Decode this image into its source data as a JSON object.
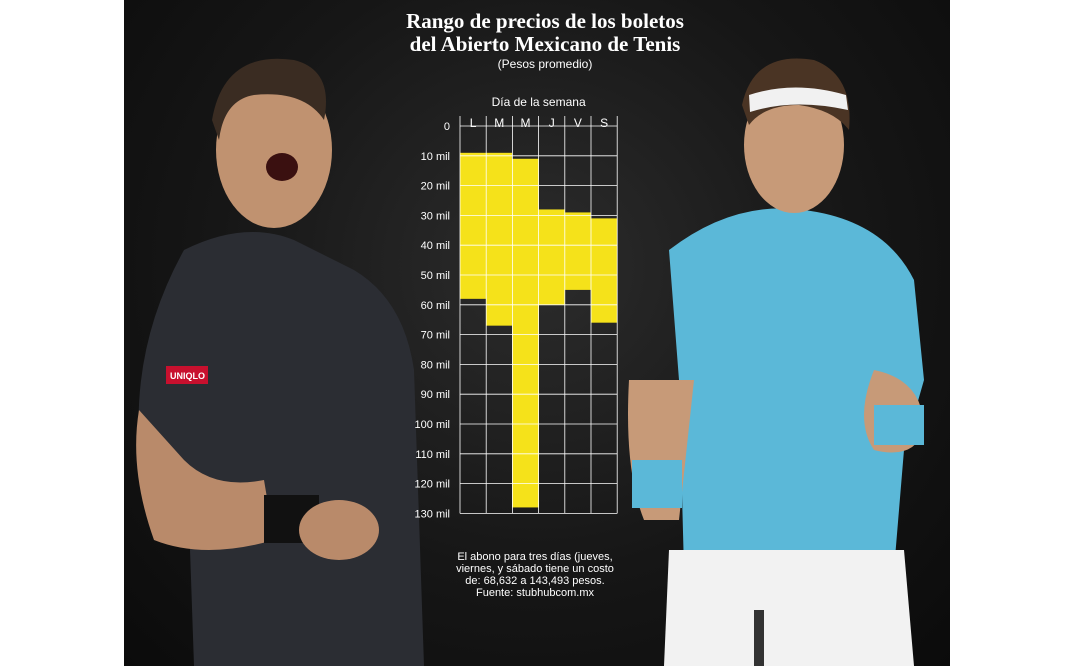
{
  "title_line1": "Rango de precios de los boletos",
  "title_line2": "del Abierto Mexicano de Tenis",
  "subtitle": "(Pesos promedio)",
  "note": {
    "line1": "El abono para tres días (jueves,",
    "line2": "viernes, y sábado tiene un costo",
    "line3": "de: 68,632 a 143,493 pesos.",
    "line4": "Fuente: stubhubcom.mx"
  },
  "shirt_logo": "UNIQLO",
  "colors": {
    "bar": "#f5e21a",
    "background": "#161616",
    "text": "#ffffff",
    "shirt_right": "#5bb8d8"
  },
  "chart_data": {
    "type": "bar",
    "subtype": "floating-range",
    "xlabel": "Día de la semana",
    "categories": [
      "L",
      "M",
      "M",
      "J",
      "V",
      "S"
    ],
    "series": [
      {
        "low": [
          9,
          9,
          11,
          28,
          29,
          31
        ],
        "high": [
          58,
          67,
          128,
          60,
          55,
          66
        ]
      }
    ],
    "y_ticks": [
      "0",
      "10 mil",
      "20 mil",
      "30 mil",
      "40 mil",
      "50 mil",
      "60 mil",
      "70 mil",
      "80 mil",
      "90 mil",
      "100 mil",
      "110 mil",
      "120 mil",
      "130 mil"
    ],
    "ylim": [
      0,
      130
    ],
    "y_inverted": true,
    "grid": true
  }
}
